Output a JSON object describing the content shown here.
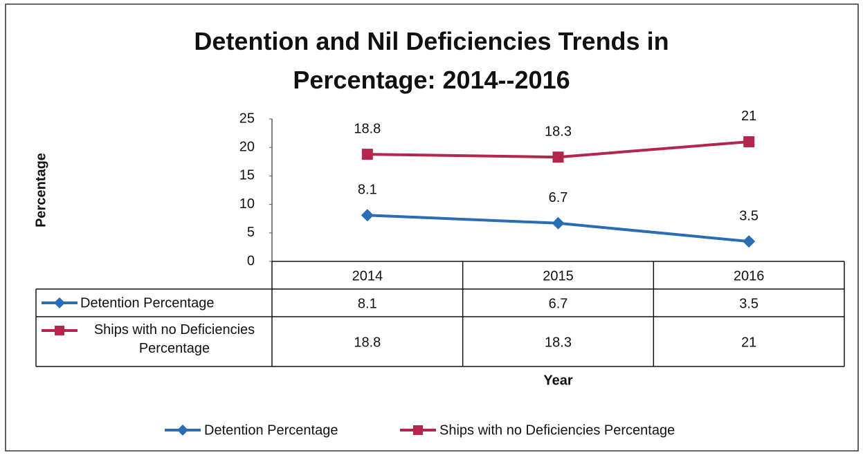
{
  "chart_data": {
    "type": "line",
    "title": "Detention and Nil Deficiencies Trends in Percentage: 2014--2016",
    "xlabel": "Year",
    "ylabel": "Percentage",
    "categories": [
      "2014",
      "2015",
      "2016"
    ],
    "series": [
      {
        "name": "Detention Percentage",
        "color": "#2a6db4",
        "marker": "diamond",
        "values": [
          8.1,
          6.7,
          3.5
        ]
      },
      {
        "name": "Ships with no Deficiencies Percentage",
        "color": "#b4264c",
        "marker": "square",
        "values": [
          18.8,
          18.3,
          21
        ]
      }
    ],
    "ylim": [
      0,
      25
    ],
    "yticks": [
      0,
      5,
      10,
      15,
      20,
      25
    ],
    "data_table": true,
    "legend": "bottom"
  }
}
